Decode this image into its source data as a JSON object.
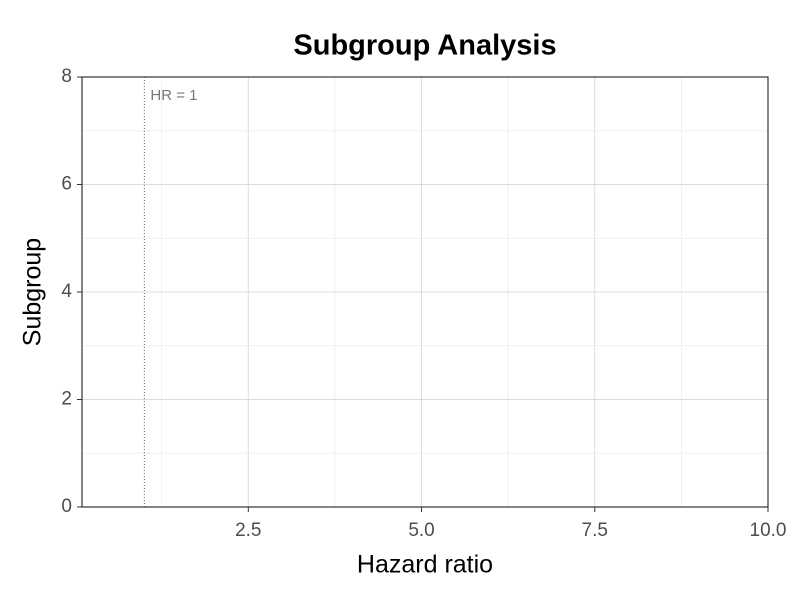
{
  "chart_data": {
    "type": "forest",
    "title": "Subgroup Analysis",
    "x_label": "Hazard ratio",
    "y_label": "Subgroup",
    "xlim": [
      0.1,
      10
    ],
    "xticks": [
      2.5,
      {
        "value": 5,
        "label": "5.0"
      },
      7.5,
      {
        "value": 10,
        "label": "10.0"
      }
    ],
    "ylim": [
      0,
      8
    ],
    "yticks": [
      0,
      2,
      4,
      6,
      8
    ],
    "grid": true,
    "reference_line": {
      "value": 1,
      "label": "HR = 1"
    }
  }
}
